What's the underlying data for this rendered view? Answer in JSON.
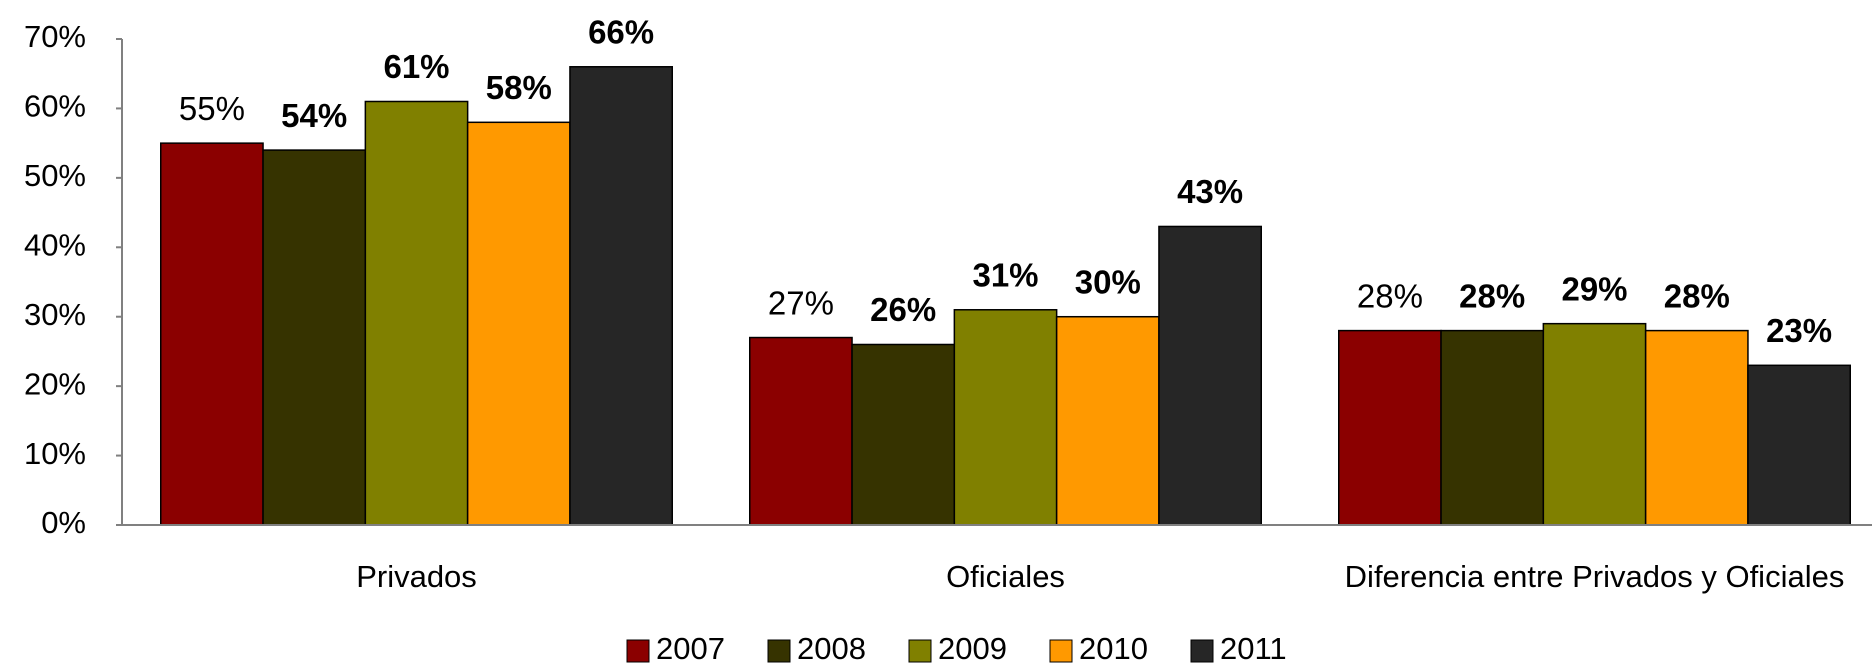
{
  "chart_data": {
    "type": "bar",
    "categories": [
      "Privados",
      "Oficiales",
      "Diferencia entre Privados y Oficiales"
    ],
    "series": [
      {
        "name": "2007",
        "color": "#8b0000",
        "values": [
          55,
          27,
          28
        ],
        "value_labels": [
          "55%",
          "27%",
          "28%"
        ]
      },
      {
        "name": "2008",
        "color": "#363300",
        "values": [
          54,
          26,
          28
        ],
        "value_labels": [
          "54%",
          "26%",
          "28%"
        ]
      },
      {
        "name": "2009",
        "color": "#808000",
        "values": [
          61,
          31,
          29
        ],
        "value_labels": [
          "61%",
          "31%",
          "29%"
        ]
      },
      {
        "name": "2010",
        "color": "#ff9900",
        "values": [
          58,
          30,
          28
        ],
        "value_labels": [
          "58%",
          "30%",
          "28%"
        ]
      },
      {
        "name": "2011",
        "color": "#262626",
        "values": [
          66,
          43,
          23
        ],
        "value_labels": [
          "66%",
          "43%",
          "23%"
        ]
      }
    ],
    "ylim": [
      0,
      70
    ],
    "yticks": [
      {
        "value": 0,
        "label": "0%"
      },
      {
        "value": 10,
        "label": "10%"
      },
      {
        "value": 20,
        "label": "20%"
      },
      {
        "value": 30,
        "label": "30%"
      },
      {
        "value": 40,
        "label": "40%"
      },
      {
        "value": 50,
        "label": "50%"
      },
      {
        "value": 60,
        "label": "60%"
      },
      {
        "value": 70,
        "label": "70%"
      }
    ],
    "legend": "bottom"
  }
}
